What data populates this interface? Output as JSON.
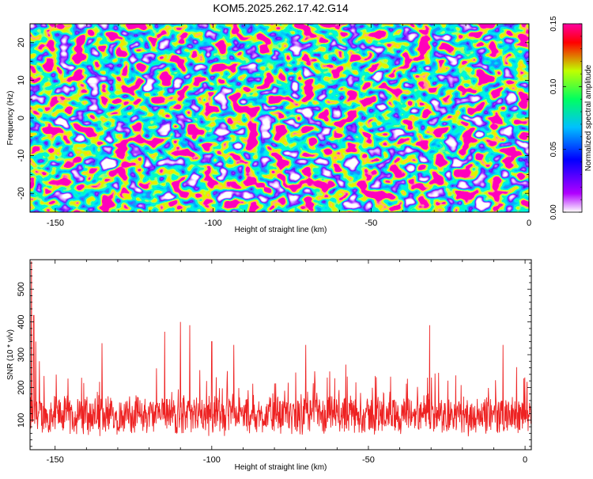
{
  "figure": {
    "title": "KOM5.2025.262.17.42.G14"
  },
  "chart_data": [
    {
      "type": "heatmap",
      "xlabel": "Height of straight line (km)",
      "ylabel": "Frequency (Hz)",
      "xlim": [
        -158,
        0
      ],
      "ylim": [
        -25,
        25
      ],
      "x_ticks": [
        -150,
        -100,
        -50,
        0
      ],
      "y_ticks": [
        -20,
        -10,
        0,
        10,
        20
      ],
      "colorbar": {
        "label": "Normalized spectral amplitude",
        "range": [
          0,
          0.15
        ],
        "ticks": [
          "0.00",
          "0.05",
          "0.10",
          "0.15"
        ],
        "colors": [
          "#ffffff",
          "#b000ff",
          "#0000ff",
          "#00c0ff",
          "#00ff60",
          "#c0ff00",
          "#ff0000",
          "#ff00a0"
        ]
      },
      "grid": false
    },
    {
      "type": "line",
      "xlabel": "Height of straight line (km)",
      "ylabel": "SNR (10 * v/v)",
      "xlim": [
        -158,
        2
      ],
      "ylim": [
        10,
        590
      ],
      "x_ticks": [
        -150,
        -100,
        -50,
        0
      ],
      "y_ticks": [
        100,
        200,
        300,
        400,
        500
      ],
      "series": [
        {
          "color": "#ee2222",
          "baseline": 115,
          "spread": 55,
          "peaks": [
            {
              "x": -157.5,
              "y": 585
            },
            {
              "x": -156.8,
              "y": 420
            },
            {
              "x": -156.2,
              "y": 340
            },
            {
              "x": -155.0,
              "y": 280
            },
            {
              "x": -135.0,
              "y": 335
            },
            {
              "x": -115.0,
              "y": 370
            },
            {
              "x": -110.0,
              "y": 400
            },
            {
              "x": -107.0,
              "y": 390
            },
            {
              "x": -100.0,
              "y": 340
            },
            {
              "x": -93.0,
              "y": 330
            },
            {
              "x": -70.0,
              "y": 330
            },
            {
              "x": -30.5,
              "y": 390
            },
            {
              "x": -7.0,
              "y": 330
            }
          ]
        }
      ],
      "grid": false
    }
  ]
}
